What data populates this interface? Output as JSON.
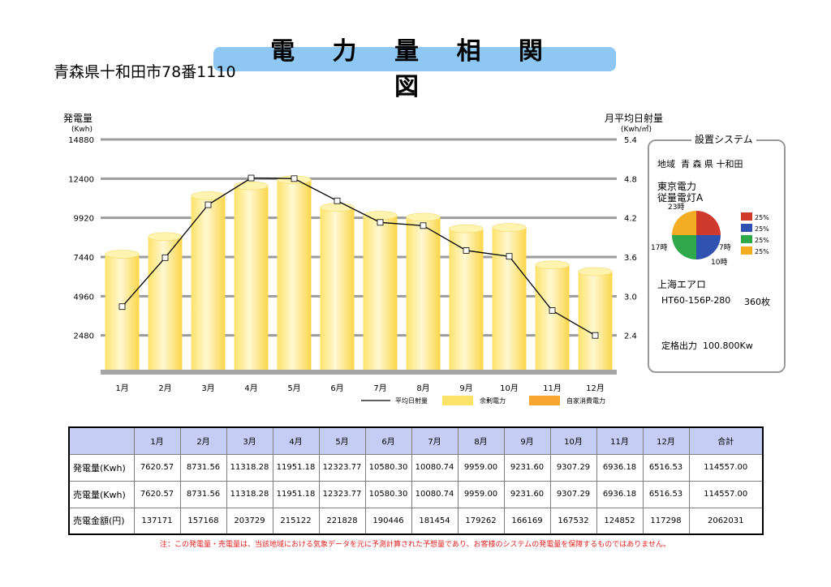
{
  "header": {
    "title": "電 力 量 相 関 図",
    "address": "青森県十和田市78番1110"
  },
  "chart_data": {
    "type": "bar",
    "categories": [
      "1月",
      "2月",
      "3月",
      "4月",
      "5月",
      "6月",
      "7月",
      "8月",
      "9月",
      "10月",
      "11月",
      "12月"
    ],
    "y_left": {
      "label": "発電量",
      "unit": "(Kwh)",
      "ticks": [
        2480,
        4960,
        7440,
        9920,
        12400,
        14880
      ],
      "range": [
        0,
        14880
      ]
    },
    "y_right": {
      "label": "月平均日射量",
      "unit": "(Kwh/㎡)",
      "ticks": [
        2.4,
        3.0,
        3.6,
        4.2,
        4.8,
        5.4
      ],
      "range": [
        1.8,
        5.4
      ]
    },
    "series": [
      {
        "name": "余剰電力",
        "type": "bar",
        "axis": "left",
        "color": "#fde36a",
        "values": [
          7620.57,
          8731.56,
          11318.28,
          11951.18,
          12323.77,
          10580.3,
          10080.74,
          9959.0,
          9231.6,
          9307.29,
          6936.18,
          6516.53
        ]
      },
      {
        "name": "平均日射量",
        "type": "line",
        "axis": "right",
        "color": "#000000",
        "values": [
          2.84,
          3.59,
          4.4,
          4.81,
          4.8,
          4.46,
          4.13,
          4.08,
          3.7,
          3.61,
          2.78,
          2.4
        ]
      },
      {
        "name": "自家消費電力",
        "type": "bar",
        "axis": "left",
        "color": "#f7a530",
        "values": [
          0,
          0,
          0,
          0,
          0,
          0,
          0,
          0,
          0,
          0,
          0,
          0
        ]
      }
    ],
    "grid": true,
    "legend_position": "bottom"
  },
  "system": {
    "title": "設置システム",
    "region_label": "地域",
    "region": "青 森 県 十和田",
    "utility": "東京電力",
    "plan": "従量電灯A",
    "pie": {
      "slices": [
        {
          "value": 25,
          "label": "25%",
          "color": "#cf3a2c"
        },
        {
          "value": 25,
          "label": "25%",
          "color": "#2f52b0"
        },
        {
          "value": 25,
          "label": "25%",
          "color": "#2fa84a"
        },
        {
          "value": 25,
          "label": "25%",
          "color": "#f2ad22"
        }
      ],
      "hour_labels": [
        "23時",
        "7時",
        "10時",
        "17時"
      ]
    },
    "maker": "上海エアロ",
    "model": "HT60-156P-280",
    "count": "360枚",
    "rated_label": "定格出力",
    "rated_value": "100.800Kw"
  },
  "table": {
    "headers": [
      "",
      "1月",
      "2月",
      "3月",
      "4月",
      "5月",
      "6月",
      "7月",
      "8月",
      "9月",
      "10月",
      "11月",
      "12月",
      "合計"
    ],
    "rows": [
      {
        "label": "発電量(Kwh)",
        "cells": [
          "7620.57",
          "8731.56",
          "11318.28",
          "11951.18",
          "12323.77",
          "10580.30",
          "10080.74",
          "9959.00",
          "9231.60",
          "9307.29",
          "6936.18",
          "6516.53",
          "114557.00"
        ]
      },
      {
        "label": "売電量(Kwh)",
        "cells": [
          "7620.57",
          "8731.56",
          "11318.28",
          "11951.18",
          "12323.77",
          "10580.30",
          "10080.74",
          "9959.00",
          "9231.60",
          "9307.29",
          "6936.18",
          "6516.53",
          "114557.00"
        ]
      },
      {
        "label": "売電金額(円)",
        "cells": [
          "137171",
          "157168",
          "203729",
          "215122",
          "221828",
          "190446",
          "181454",
          "179262",
          "166169",
          "167532",
          "124852",
          "117298",
          "2062031"
        ]
      }
    ]
  },
  "note": "注：この発電量・売電量は、当該地域における気象データを元に予測計算された予想量であり、お客様のシステムの発電量を保障するものではありません。"
}
